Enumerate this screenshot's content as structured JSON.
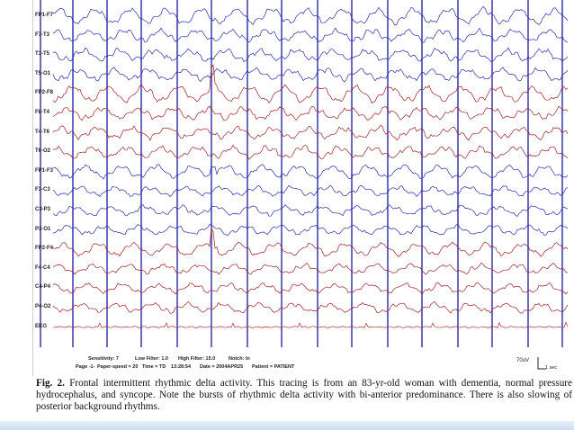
{
  "eeg": {
    "channels": [
      {
        "label": "FP1-F7",
        "color": "#2a2ab0"
      },
      {
        "label": "F7-T3",
        "color": "#2a2ab0"
      },
      {
        "label": "T3-T5",
        "color": "#2a2ab0"
      },
      {
        "label": "T5-O1",
        "color": "#2a2ab0"
      },
      {
        "label": "FP2-F8",
        "color": "#a02020"
      },
      {
        "label": "F8-T4",
        "color": "#a02020"
      },
      {
        "label": "T4-T6",
        "color": "#a02020"
      },
      {
        "label": "T6-O2",
        "color": "#a02020"
      },
      {
        "label": "FP1-F3",
        "color": "#2a2ab0"
      },
      {
        "label": "F3-C3",
        "color": "#2a2ab0"
      },
      {
        "label": "C3-P3",
        "color": "#2a2ab0"
      },
      {
        "label": "P3-O1",
        "color": "#2a2ab0"
      },
      {
        "label": "FP2-F4",
        "color": "#a02020"
      },
      {
        "label": "F4-C4",
        "color": "#a02020"
      },
      {
        "label": "C4-P4",
        "color": "#a02020"
      },
      {
        "label": "P4-O2",
        "color": "#a02020"
      },
      {
        "label": "EKG",
        "color": "#b03030"
      }
    ],
    "second_marker_color": "#1a1aa0"
  },
  "footer": {
    "sensitivity": "Sensitivity: 7",
    "low_filter": "Low Filter: 1.0",
    "high_filter": "High Filter: 15.0",
    "notch": "Notch: In",
    "page": "Page -1-",
    "paper_speed": "Paper-speed = 20",
    "time": "Time = TD",
    "clock": "13:28:54",
    "date": "Date = 2004APR25",
    "patient": "Patient = PATIENT"
  },
  "calibration": {
    "amplitude": "70uV",
    "duration": "1 sec"
  },
  "caption": {
    "figure_label": "Fig. 2.",
    "text": "Frontal intermittent rhythmic delta activity. This tracing is from an 83-yr-old woman with dementia, normal pressure hydrocephalus, and syncope. Note the bursts of rhythmic delta activity with bi-anterior predominance. There is also slowing of posterior background rhythms."
  }
}
